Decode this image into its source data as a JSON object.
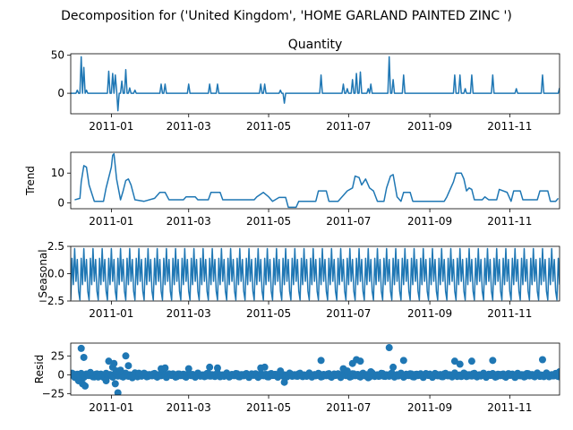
{
  "figure": {
    "suptitle": "Decomposition for ('United Kingdom', 'HOME GARLAND PAINTED ZINC ')"
  },
  "chart_data": {
    "type": "line",
    "x_range": [
      "2010-12-01",
      "2011-12-09"
    ],
    "x_ticks": [
      "2011-01-01",
      "2011-03-01",
      "2011-05-01",
      "2011-07-01",
      "2011-09-01",
      "2011-11-01"
    ],
    "x_tick_labels": [
      "2011-01",
      "2011-03",
      "2011-05",
      "2011-07",
      "2011-09",
      "2011-11"
    ],
    "panels": [
      {
        "name": "observed",
        "title": "Quantity",
        "ylabel": "",
        "kind": "line",
        "ylim": [
          -27,
          52
        ],
        "yticks": [
          0,
          50
        ],
        "ytick_labels": [
          "0",
          "50"
        ],
        "zero_line": false,
        "spikes": [
          [
            "2010-12-06",
            4
          ],
          [
            "2010-12-09",
            48
          ],
          [
            "2010-12-11",
            34
          ],
          [
            "2010-12-13",
            4
          ],
          [
            "2010-12-30",
            29
          ],
          [
            "2011-01-02",
            26
          ],
          [
            "2011-01-04",
            24
          ],
          [
            "2011-01-05",
            4
          ],
          [
            "2011-01-06",
            -23
          ],
          [
            "2011-01-09",
            16
          ],
          [
            "2011-01-12",
            31
          ],
          [
            "2011-01-15",
            7
          ],
          [
            "2011-01-19",
            4
          ],
          [
            "2011-02-08",
            12
          ],
          [
            "2011-02-11",
            12
          ],
          [
            "2011-03-01",
            12
          ],
          [
            "2011-03-17",
            12
          ],
          [
            "2011-03-23",
            12
          ],
          [
            "2011-04-25",
            12
          ],
          [
            "2011-04-28",
            12
          ],
          [
            "2011-05-10",
            4
          ],
          [
            "2011-05-13",
            -13
          ],
          [
            "2011-06-10",
            24
          ],
          [
            "2011-06-27",
            12
          ],
          [
            "2011-06-30",
            6
          ],
          [
            "2011-07-04",
            18
          ],
          [
            "2011-07-07",
            26
          ],
          [
            "2011-07-10",
            28
          ],
          [
            "2011-07-16",
            6
          ],
          [
            "2011-07-18",
            12
          ],
          [
            "2011-08-01",
            48
          ],
          [
            "2011-08-04",
            18
          ],
          [
            "2011-08-12",
            24
          ],
          [
            "2011-09-20",
            24
          ],
          [
            "2011-09-24",
            24
          ],
          [
            "2011-09-28",
            6
          ],
          [
            "2011-10-03",
            24
          ],
          [
            "2011-10-19",
            24
          ],
          [
            "2011-11-06",
            6
          ],
          [
            "2011-11-26",
            24
          ],
          [
            "2011-12-09",
            7
          ]
        ]
      },
      {
        "name": "trend",
        "title": "",
        "ylabel": "Trend",
        "kind": "line",
        "ylim": [
          -2,
          17
        ],
        "yticks": [
          0,
          10
        ],
        "ytick_labels": [
          "0",
          "10"
        ],
        "zero_line": false,
        "points": [
          [
            "2010-12-04",
            1
          ],
          [
            "2010-12-08",
            1.5
          ],
          [
            "2010-12-09",
            7
          ],
          [
            "2010-12-11",
            12.5
          ],
          [
            "2010-12-13",
            12
          ],
          [
            "2010-12-15",
            6
          ],
          [
            "2010-12-19",
            0.5
          ],
          [
            "2010-12-26",
            0.5
          ],
          [
            "2010-12-28",
            5
          ],
          [
            "2011-01-01",
            12
          ],
          [
            "2011-01-02",
            16
          ],
          [
            "2011-01-03",
            16.5
          ],
          [
            "2011-01-05",
            8
          ],
          [
            "2011-01-08",
            1
          ],
          [
            "2011-01-10",
            4
          ],
          [
            "2011-01-12",
            7.5
          ],
          [
            "2011-01-14",
            8
          ],
          [
            "2011-01-16",
            6
          ],
          [
            "2011-01-19",
            1
          ],
          [
            "2011-01-26",
            0.5
          ],
          [
            "2011-02-03",
            1.5
          ],
          [
            "2011-02-07",
            3.5
          ],
          [
            "2011-02-11",
            3.5
          ],
          [
            "2011-02-14",
            1
          ],
          [
            "2011-02-25",
            1
          ],
          [
            "2011-02-27",
            2
          ],
          [
            "2011-03-06",
            2
          ],
          [
            "2011-03-08",
            1
          ],
          [
            "2011-03-16",
            1
          ],
          [
            "2011-03-18",
            3.5
          ],
          [
            "2011-03-25",
            3.5
          ],
          [
            "2011-03-27",
            1
          ],
          [
            "2011-04-20",
            1
          ],
          [
            "2011-04-22",
            2
          ],
          [
            "2011-04-27",
            3.5
          ],
          [
            "2011-05-01",
            2
          ],
          [
            "2011-05-04",
            0.5
          ],
          [
            "2011-05-09",
            1.8
          ],
          [
            "2011-05-14",
            1.8
          ],
          [
            "2011-05-16",
            -1.5
          ],
          [
            "2011-05-22",
            -1.5
          ],
          [
            "2011-05-24",
            0.5
          ],
          [
            "2011-06-06",
            0.5
          ],
          [
            "2011-06-08",
            4
          ],
          [
            "2011-06-14",
            4
          ],
          [
            "2011-06-16",
            0.5
          ],
          [
            "2011-06-23",
            0.5
          ],
          [
            "2011-06-27",
            2.5
          ],
          [
            "2011-06-30",
            4
          ],
          [
            "2011-07-04",
            5
          ],
          [
            "2011-07-06",
            9
          ],
          [
            "2011-07-09",
            8.5
          ],
          [
            "2011-07-11",
            6
          ],
          [
            "2011-07-14",
            8
          ],
          [
            "2011-07-17",
            5
          ],
          [
            "2011-07-20",
            4
          ],
          [
            "2011-07-23",
            0.5
          ],
          [
            "2011-07-28",
            0.5
          ],
          [
            "2011-07-30",
            5
          ],
          [
            "2011-08-02",
            9
          ],
          [
            "2011-08-04",
            9.5
          ],
          [
            "2011-08-05",
            7
          ],
          [
            "2011-08-07",
            2
          ],
          [
            "2011-08-10",
            0.5
          ],
          [
            "2011-08-12",
            3.5
          ],
          [
            "2011-08-17",
            3.5
          ],
          [
            "2011-08-19",
            0.5
          ],
          [
            "2011-09-12",
            0.5
          ],
          [
            "2011-09-14",
            2
          ],
          [
            "2011-09-16",
            4
          ],
          [
            "2011-09-19",
            7
          ],
          [
            "2011-09-21",
            10
          ],
          [
            "2011-09-25",
            10
          ],
          [
            "2011-09-27",
            8
          ],
          [
            "2011-09-29",
            4
          ],
          [
            "2011-10-01",
            5
          ],
          [
            "2011-10-03",
            4.5
          ],
          [
            "2011-10-05",
            1
          ],
          [
            "2011-10-11",
            1
          ],
          [
            "2011-10-13",
            2
          ],
          [
            "2011-10-16",
            1
          ],
          [
            "2011-10-22",
            1
          ],
          [
            "2011-10-24",
            4.5
          ],
          [
            "2011-10-30",
            3.5
          ],
          [
            "2011-11-02",
            0.5
          ],
          [
            "2011-11-04",
            4
          ],
          [
            "2011-11-09",
            4
          ],
          [
            "2011-11-11",
            1
          ],
          [
            "2011-11-22",
            1
          ],
          [
            "2011-11-24",
            4
          ],
          [
            "2011-11-30",
            4
          ],
          [
            "2011-12-02",
            0.5
          ],
          [
            "2011-12-06",
            0.5
          ],
          [
            "2011-12-08",
            1.5
          ]
        ]
      },
      {
        "name": "seasonal",
        "title": "",
        "ylabel": "Seasonal",
        "kind": "line",
        "ylim": [
          -2.5,
          2.5
        ],
        "yticks": [
          -2.5,
          0.0,
          2.5
        ],
        "ytick_labels": [
          "−2.5",
          "0.0",
          "2.5"
        ],
        "zero_line": false,
        "period_days": 7,
        "weekly_pattern": [
          -2.4,
          1.4,
          -1.0,
          2.3,
          -0.7,
          1.3,
          -1.6
        ]
      },
      {
        "name": "resid",
        "title": "",
        "ylabel": "Resid",
        "kind": "scatter",
        "ylim": [
          -27,
          42
        ],
        "yticks": [
          -25,
          0,
          25
        ],
        "ytick_labels": [
          "−25",
          "0",
          "25"
        ],
        "zero_line": true,
        "points": [
          [
            "2010-12-03",
            1
          ],
          [
            "2010-12-05",
            -4
          ],
          [
            "2010-12-07",
            -8
          ],
          [
            "2010-12-09",
            35
          ],
          [
            "2010-12-10",
            -12
          ],
          [
            "2010-12-11",
            23
          ],
          [
            "2010-12-12",
            -15
          ],
          [
            "2010-12-16",
            3
          ],
          [
            "2010-12-22",
            -3
          ],
          [
            "2010-12-28",
            -8
          ],
          [
            "2010-12-30",
            18
          ],
          [
            "2011-01-02",
            10
          ],
          [
            "2011-01-03",
            15
          ],
          [
            "2011-01-04",
            -12
          ],
          [
            "2011-01-05",
            5
          ],
          [
            "2011-01-06",
            -24
          ],
          [
            "2011-01-08",
            6
          ],
          [
            "2011-01-10",
            -3
          ],
          [
            "2011-01-12",
            25
          ],
          [
            "2011-01-14",
            12
          ],
          [
            "2011-01-17",
            -4
          ],
          [
            "2011-01-22",
            2
          ],
          [
            "2011-02-08",
            8
          ],
          [
            "2011-02-11",
            9
          ],
          [
            "2011-03-01",
            8
          ],
          [
            "2011-03-17",
            10
          ],
          [
            "2011-03-23",
            9
          ],
          [
            "2011-04-25",
            9
          ],
          [
            "2011-04-28",
            10
          ],
          [
            "2011-05-10",
            5
          ],
          [
            "2011-05-13",
            -10
          ],
          [
            "2011-06-10",
            19
          ],
          [
            "2011-06-27",
            8
          ],
          [
            "2011-06-30",
            5
          ],
          [
            "2011-07-04",
            15
          ],
          [
            "2011-07-07",
            20
          ],
          [
            "2011-07-10",
            18
          ],
          [
            "2011-07-16",
            -4
          ],
          [
            "2011-07-18",
            4
          ],
          [
            "2011-08-01",
            36
          ],
          [
            "2011-08-04",
            10
          ],
          [
            "2011-08-12",
            19
          ],
          [
            "2011-09-20",
            18
          ],
          [
            "2011-09-24",
            14
          ],
          [
            "2011-10-03",
            18
          ],
          [
            "2011-10-19",
            19
          ],
          [
            "2011-11-06",
            -2
          ],
          [
            "2011-11-26",
            20
          ],
          [
            "2011-12-09",
            4
          ]
        ]
      }
    ]
  }
}
